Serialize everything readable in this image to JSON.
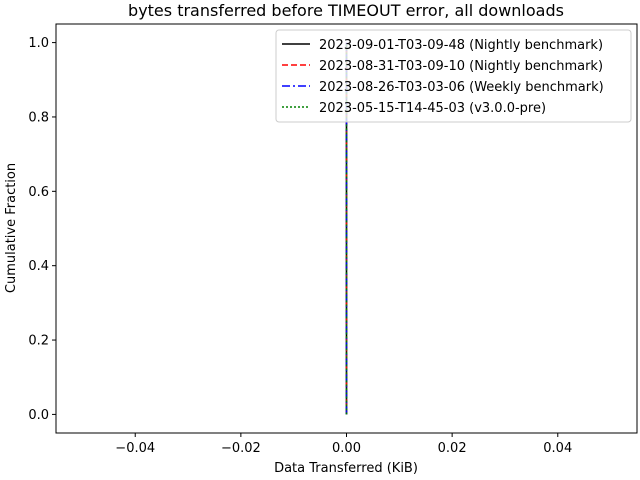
{
  "chart_data": {
    "type": "line",
    "title": "bytes transferred before TIMEOUT error, all downloads",
    "xlabel": "Data Transferred (KiB)",
    "ylabel": "Cumulative Fraction",
    "xlim": [
      -0.055,
      0.055
    ],
    "ylim": [
      -0.05,
      1.05
    ],
    "xticks": [
      -0.04,
      -0.02,
      0.0,
      0.02,
      0.04
    ],
    "xtick_labels": [
      "−0.04",
      "−0.02",
      "0.00",
      "0.02",
      "0.04"
    ],
    "yticks": [
      0.0,
      0.2,
      0.4,
      0.6,
      0.8,
      1.0
    ],
    "ytick_labels": [
      "0.0",
      "0.2",
      "0.4",
      "0.6",
      "0.8",
      "1.0"
    ],
    "grid": false,
    "legend_position": "top-right",
    "series": [
      {
        "name": "2023-09-01-T03-09-48 (Nightly benchmark)",
        "color": "#000000",
        "dash": "solid",
        "x": [
          0,
          0
        ],
        "y": [
          0.0,
          1.0
        ]
      },
      {
        "name": "2023-08-31-T03-09-10 (Nightly benchmark)",
        "color": "#ff0000",
        "dash": "dashed",
        "x": [
          0,
          0
        ],
        "y": [
          0.0,
          1.0
        ]
      },
      {
        "name": "2023-08-26-T03-03-06 (Weekly benchmark)",
        "color": "#0000ff",
        "dash": "dashdot",
        "x": [
          0,
          0
        ],
        "y": [
          0.0,
          1.0
        ]
      },
      {
        "name": "2023-05-15-T14-45-03 (v3.0.0-pre)",
        "color": "#008000",
        "dash": "dotted",
        "x": [
          0,
          0
        ],
        "y": [
          0.0,
          1.0
        ]
      }
    ]
  }
}
